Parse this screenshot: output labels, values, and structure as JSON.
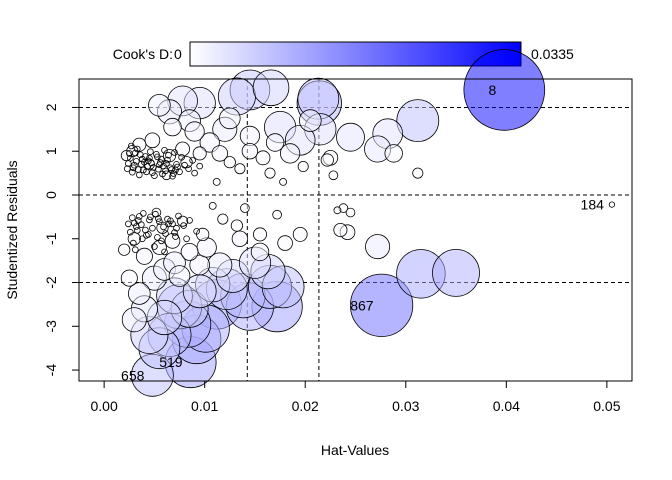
{
  "chart_data": {
    "type": "scatter",
    "title": "",
    "xlabel": "Hat-Values",
    "ylabel": "Studentized Residuals",
    "xlim": [
      -0.0025,
      0.0525
    ],
    "ylim": [
      -4.25,
      2.65
    ],
    "x_ticks": [
      0.0,
      0.01,
      0.02,
      0.03,
      0.04,
      0.05
    ],
    "x_tick_labels": [
      "0.00",
      "0.01",
      "0.02",
      "0.03",
      "0.04",
      "0.05"
    ],
    "y_ticks": [
      -4,
      -3,
      -2,
      -1,
      0,
      1,
      2
    ],
    "y_tick_labels": [
      "-4",
      "-3",
      "-2",
      "-1",
      "0",
      "1",
      "2"
    ],
    "reference_lines": {
      "horizontal": [
        -2,
        0,
        2
      ],
      "vertical": [
        0.01424,
        0.02136
      ],
      "style": "dashed"
    },
    "color_scale": {
      "label": "Cook's D:",
      "min": 0,
      "max": 0.0335,
      "min_label": "0",
      "max_label": "0.0335",
      "low_color": "#ffffff",
      "high_color": "#0000ff"
    },
    "size_encoding": "Cook's D",
    "labeled_points": [
      {
        "label": "8",
        "x": 0.0398,
        "y": 2.4,
        "cooks_d": 0.0335
      },
      {
        "label": "184",
        "x": 0.0505,
        "y": -0.22,
        "cooks_d": 4e-05
      },
      {
        "label": "867",
        "x": 0.0276,
        "y": -2.52,
        "cooks_d": 0.0195
      },
      {
        "label": "519",
        "x": 0.0086,
        "y": -3.82,
        "cooks_d": 0.0128
      },
      {
        "label": "658",
        "x": 0.0048,
        "y": -4.12,
        "cooks_d": 0.0085
      }
    ],
    "points": [
      {
        "x": 0.0398,
        "y": 2.4,
        "d": 0.0335
      },
      {
        "x": 0.0505,
        "y": -0.22,
        "d": 4e-05
      },
      {
        "x": 0.0276,
        "y": -2.52,
        "d": 0.0195
      },
      {
        "x": 0.0086,
        "y": -3.82,
        "d": 0.0128
      },
      {
        "x": 0.0048,
        "y": -4.12,
        "d": 0.0085
      },
      {
        "x": 0.035,
        "y": -1.78,
        "d": 0.0108
      },
      {
        "x": 0.0315,
        "y": -1.8,
        "d": 0.0115
      },
      {
        "x": 0.0312,
        "y": 1.7,
        "d": 0.0085
      },
      {
        "x": 0.0214,
        "y": 2.1,
        "d": 0.0095
      },
      {
        "x": 0.0213,
        "y": 2.2,
        "d": 0.008
      },
      {
        "x": 0.0172,
        "y": -2.55,
        "d": 0.0125
      },
      {
        "x": 0.0145,
        "y": -2.55,
        "d": 0.011
      },
      {
        "x": 0.0165,
        "y": -2.1,
        "d": 0.009
      },
      {
        "x": 0.0178,
        "y": -2.1,
        "d": 0.0085
      },
      {
        "x": 0.0138,
        "y": -2.3,
        "d": 0.0095
      },
      {
        "x": 0.0112,
        "y": -2.5,
        "d": 0.012
      },
      {
        "x": 0.0101,
        "y": -3.05,
        "d": 0.011
      },
      {
        "x": 0.0092,
        "y": -3.3,
        "d": 0.0115
      },
      {
        "x": 0.0083,
        "y": -2.95,
        "d": 0.0105
      },
      {
        "x": 0.0075,
        "y": -2.55,
        "d": 0.0095
      },
      {
        "x": 0.0065,
        "y": -3.2,
        "d": 0.009
      },
      {
        "x": 0.0055,
        "y": -3.5,
        "d": 0.008
      },
      {
        "x": 0.0045,
        "y": -3.2,
        "d": 0.0065
      },
      {
        "x": 0.0122,
        "y": -2.15,
        "d": 0.008
      },
      {
        "x": 0.0145,
        "y": 2.4,
        "d": 0.0075
      },
      {
        "x": 0.0132,
        "y": 2.25,
        "d": 0.0065
      },
      {
        "x": 0.0166,
        "y": 2.45,
        "d": 0.006
      },
      {
        "x": 0.0215,
        "y": 1.5,
        "d": 0.0045
      },
      {
        "x": 0.0272,
        "y": 1.05,
        "d": 0.003
      },
      {
        "x": 0.0282,
        "y": 1.4,
        "d": 0.004
      },
      {
        "x": 0.0272,
        "y": -1.18,
        "d": 0.0025
      },
      {
        "x": 0.0175,
        "y": 1.55,
        "d": 0.0045
      },
      {
        "x": 0.0195,
        "y": 1.25,
        "d": 0.004
      },
      {
        "x": 0.0095,
        "y": 2.1,
        "d": 0.0045
      },
      {
        "x": 0.0078,
        "y": 2.15,
        "d": 0.004
      },
      {
        "x": 0.0245,
        "y": 1.32,
        "d": 0.0035
      },
      {
        "x": 0.0163,
        "y": -1.75,
        "d": 0.0055
      },
      {
        "x": 0.015,
        "y": -1.55,
        "d": 0.0045
      },
      {
        "x": 0.0128,
        "y": -1.85,
        "d": 0.005
      },
      {
        "x": 0.0108,
        "y": -2.05,
        "d": 0.0055
      },
      {
        "x": 0.0095,
        "y": -2.2,
        "d": 0.005
      },
      {
        "x": 0.0085,
        "y": -2.6,
        "d": 0.0065
      },
      {
        "x": 0.007,
        "y": -2.3,
        "d": 0.006
      },
      {
        "x": 0.006,
        "y": -2.8,
        "d": 0.0055
      },
      {
        "x": 0.004,
        "y": -2.6,
        "d": 0.003
      },
      {
        "x": 0.0035,
        "y": -2.25,
        "d": 0.002
      },
      {
        "x": 0.003,
        "y": -2.85,
        "d": 0.0025
      },
      {
        "x": 0.005,
        "y": -1.9,
        "d": 0.0025
      },
      {
        "x": 0.006,
        "y": -1.7,
        "d": 0.002
      },
      {
        "x": 0.007,
        "y": -1.55,
        "d": 0.002
      },
      {
        "x": 0.0115,
        "y": -1.6,
        "d": 0.0025
      },
      {
        "x": 0.0102,
        "y": -1.2,
        "d": 0.0015
      },
      {
        "x": 0.0065,
        "y": 1.9,
        "d": 0.0025
      },
      {
        "x": 0.0055,
        "y": 2.05,
        "d": 0.002
      },
      {
        "x": 0.0085,
        "y": 1.7,
        "d": 0.002
      },
      {
        "x": 0.012,
        "y": 1.5,
        "d": 0.0025
      },
      {
        "x": 0.0105,
        "y": 1.2,
        "d": 0.0015
      },
      {
        "x": 0.0185,
        "y": 0.95,
        "d": 0.0015
      },
      {
        "x": 0.0225,
        "y": 0.85,
        "d": 0.0008
      },
      {
        "x": 0.0288,
        "y": 0.95,
        "d": 0.0012
      },
      {
        "x": 0.0312,
        "y": 0.5,
        "d": 0.0003
      },
      {
        "x": 0.0228,
        "y": 0.45,
        "d": 0.0002
      },
      {
        "x": 0.0238,
        "y": -0.3,
        "d": 0.0002
      },
      {
        "x": 0.0245,
        "y": -0.4,
        "d": 0.0002
      },
      {
        "x": 0.0232,
        "y": -0.35,
        "d": 0.0001
      },
      {
        "x": 0.0242,
        "y": -0.85,
        "d": 0.0008
      },
      {
        "x": 0.0195,
        "y": -0.9,
        "d": 0.0007
      },
      {
        "x": 0.018,
        "y": -1.1,
        "d": 0.0008
      },
      {
        "x": 0.0172,
        "y": -0.45,
        "d": 0.0002
      },
      {
        "x": 0.0155,
        "y": -0.9,
        "d": 0.0006
      },
      {
        "x": 0.0158,
        "y": 0.85,
        "d": 0.0007
      },
      {
        "x": 0.0145,
        "y": 1.0,
        "d": 0.0009
      },
      {
        "x": 0.0135,
        "y": 0.6,
        "d": 0.0003
      },
      {
        "x": 0.0125,
        "y": 0.75,
        "d": 0.0004
      },
      {
        "x": 0.0118,
        "y": -0.55,
        "d": 0.0003
      },
      {
        "x": 0.0132,
        "y": -0.7,
        "d": 0.0004
      },
      {
        "x": 0.014,
        "y": -0.3,
        "d": 0.0002
      },
      {
        "x": 0.0165,
        "y": 0.5,
        "d": 0.0003
      },
      {
        "x": 0.0178,
        "y": 0.3,
        "d": 0.0001
      },
      {
        "x": 0.0112,
        "y": 0.3,
        "d": 0.0001
      },
      {
        "x": 0.0108,
        "y": -0.25,
        "d": 0.0001
      },
      {
        "x": 0.0098,
        "y": -0.9,
        "d": 0.0005
      },
      {
        "x": 0.0095,
        "y": 0.95,
        "d": 0.0006
      },
      {
        "x": 0.0078,
        "y": 1.05,
        "d": 0.0007
      },
      {
        "x": 0.0068,
        "y": -1.05,
        "d": 0.0008
      },
      {
        "x": 0.0055,
        "y": -1.2,
        "d": 0.0007
      },
      {
        "x": 0.0048,
        "y": 1.25,
        "d": 0.0008
      },
      {
        "x": 0.0035,
        "y": 1.15,
        "d": 0.0006
      },
      {
        "x": 0.004,
        "y": -1.4,
        "d": 0.001
      },
      {
        "x": 0.003,
        "y": -1.0,
        "d": 0.0005
      },
      {
        "x": 0.0022,
        "y": 0.9,
        "d": 0.0003
      },
      {
        "x": 0.002,
        "y": -1.25,
        "d": 0.0004
      },
      {
        "x": 0.0025,
        "y": -1.9,
        "d": 0.001
      },
      {
        "x": 0.0028,
        "y": 1.0,
        "d": 0.0004
      },
      {
        "x": 0.0198,
        "y": 0.65,
        "d": 0.0003
      },
      {
        "x": 0.0205,
        "y": 1.7,
        "d": 0.002
      },
      {
        "x": 0.0235,
        "y": -0.8,
        "d": 0.0006
      },
      {
        "x": 0.0222,
        "y": 0.8,
        "d": 0.0005
      },
      {
        "x": 0.017,
        "y": 1.2,
        "d": 0.0012
      },
      {
        "x": 0.0125,
        "y": 1.75,
        "d": 0.0018
      },
      {
        "x": 0.009,
        "y": 1.45,
        "d": 0.0015
      },
      {
        "x": 0.0068,
        "y": 1.55,
        "d": 0.0012
      },
      {
        "x": 0.0145,
        "y": 1.35,
        "d": 0.0015
      },
      {
        "x": 0.0155,
        "y": -1.3,
        "d": 0.0012
      },
      {
        "x": 0.0135,
        "y": -1.0,
        "d": 0.0009
      },
      {
        "x": 0.0085,
        "y": -1.3,
        "d": 0.0011
      },
      {
        "x": 0.0075,
        "y": -1.85,
        "d": 0.0018
      },
      {
        "x": 0.0095,
        "y": -1.6,
        "d": 0.0016
      },
      {
        "x": 0.0115,
        "y": 0.95,
        "d": 0.0009
      },
      {
        "x": 0.0082,
        "y": 0.75,
        "d": 0.0004
      },
      {
        "x": 0.0065,
        "y": 0.9,
        "d": 0.0005
      },
      {
        "x": 0.0058,
        "y": -0.75,
        "d": 0.0004
      },
      {
        "x": 0.0078,
        "y": -0.6,
        "d": 0.0003
      },
      {
        "x": 0.0045,
        "y": 0.7,
        "d": 0.0003
      },
      {
        "x": 0.0052,
        "y": -0.4,
        "d": 0.0002
      },
      {
        "x": 0.0062,
        "y": 0.45,
        "d": 0.0002
      }
    ],
    "cluster_points": [
      [
        0.0026,
        0.84
      ],
      [
        0.0037,
        0.7
      ],
      [
        0.0054,
        0.59
      ],
      [
        0.0068,
        0.43
      ],
      [
        0.0031,
        0.96
      ],
      [
        0.0044,
        0.78
      ],
      [
        0.0059,
        0.66
      ],
      [
        0.0075,
        0.53
      ],
      [
        0.0029,
        0.62
      ],
      [
        0.0041,
        0.88
      ],
      [
        0.0056,
        0.74
      ],
      [
        0.0071,
        0.57
      ],
      [
        0.0033,
        1.05
      ],
      [
        0.0048,
        0.51
      ],
      [
        0.0063,
        0.8
      ],
      [
        0.008,
        0.68
      ],
      [
        0.0024,
        0.72
      ],
      [
        0.0039,
        0.57
      ],
      [
        0.0052,
        0.93
      ],
      [
        0.0066,
        0.62
      ],
      [
        0.0035,
        0.46
      ],
      [
        0.0046,
        0.99
      ],
      [
        0.0061,
        0.55
      ],
      [
        0.0077,
        0.86
      ],
      [
        0.0028,
        0.52
      ],
      [
        0.0043,
        0.65
      ],
      [
        0.0057,
        0.82
      ],
      [
        0.0072,
        0.7
      ],
      [
        0.0032,
        0.77
      ],
      [
        0.005,
        0.44
      ],
      [
        0.0064,
        0.91
      ],
      [
        0.0084,
        0.6
      ],
      [
        0.0027,
        1.12
      ],
      [
        0.0038,
        0.82
      ],
      [
        0.0055,
        0.69
      ],
      [
        0.007,
        0.97
      ],
      [
        0.0034,
        0.58
      ],
      [
        0.0047,
        0.73
      ],
      [
        0.006,
        1.02
      ],
      [
        0.009,
        0.5
      ],
      [
        0.003,
        0.68
      ],
      [
        0.0042,
        0.53
      ],
      [
        0.0053,
        0.87
      ],
      [
        0.0069,
        0.49
      ],
      [
        0.0036,
        0.92
      ],
      [
        0.0049,
        0.63
      ],
      [
        0.0062,
        0.72
      ],
      [
        0.0088,
        0.79
      ],
      [
        0.0023,
        0.6
      ],
      [
        0.004,
        0.75
      ],
      [
        0.0058,
        0.48
      ],
      [
        0.0073,
        0.64
      ],
      [
        0.0025,
        0.95
      ],
      [
        0.0045,
        0.84
      ],
      [
        0.0067,
        0.58
      ],
      [
        0.0095,
        0.66
      ],
      [
        0.0028,
        -0.52
      ],
      [
        0.0037,
        -0.68
      ],
      [
        0.0051,
        -0.44
      ],
      [
        0.0066,
        -0.59
      ],
      [
        0.0033,
        -0.81
      ],
      [
        0.0045,
        -0.57
      ],
      [
        0.0059,
        -0.73
      ],
      [
        0.0074,
        -0.48
      ],
      [
        0.003,
        -0.64
      ],
      [
        0.0042,
        -0.92
      ],
      [
        0.0055,
        -0.61
      ],
      [
        0.007,
        -0.86
      ],
      [
        0.0035,
        -0.49
      ],
      [
        0.0048,
        -0.76
      ],
      [
        0.0063,
        -0.55
      ],
      [
        0.0079,
        -0.7
      ],
      [
        0.0026,
        -0.85
      ],
      [
        0.0039,
        -0.42
      ],
      [
        0.0053,
        -0.97
      ],
      [
        0.0068,
        -0.66
      ],
      [
        0.0032,
        -0.72
      ],
      [
        0.0046,
        -0.5
      ],
      [
        0.0061,
        -0.88
      ],
      [
        0.0085,
        -0.58
      ],
      [
        0.0029,
        -1.1
      ],
      [
        0.0041,
        -0.8
      ],
      [
        0.0057,
        -1.05
      ],
      [
        0.0072,
        -0.76
      ],
      [
        0.0034,
        -0.58
      ],
      [
        0.005,
        -1.18
      ],
      [
        0.0064,
        -0.66
      ],
      [
        0.0092,
        -0.83
      ],
      [
        0.0024,
        -0.66
      ],
      [
        0.0038,
        -1.0
      ],
      [
        0.0054,
        -0.54
      ],
      [
        0.0071,
        -0.95
      ],
      [
        0.0031,
        -1.25
      ],
      [
        0.0044,
        -0.9
      ],
      [
        0.006,
        -1.3
      ],
      [
        0.0082,
        -1.0
      ]
    ]
  }
}
